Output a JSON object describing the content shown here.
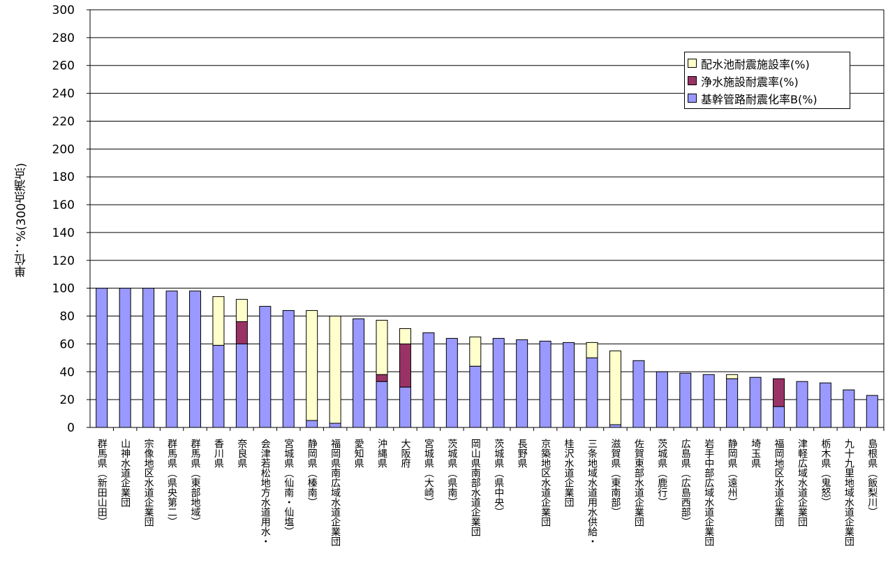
{
  "chart_data": {
    "type": "bar",
    "stacked": true,
    "title": "",
    "xlabel": "",
    "ylabel": "単位：%(300点満点)",
    "ylim": [
      0,
      300
    ],
    "yticks": [
      0,
      20,
      40,
      60,
      80,
      100,
      120,
      140,
      160,
      180,
      200,
      220,
      240,
      260,
      280,
      300
    ],
    "grid": true,
    "legend_position": "top-right",
    "categories": [
      "群馬県（新田山田）",
      "山神水道企業団",
      "宗像地区水道企業団",
      "群馬県（県央第二）",
      "群馬県（東部地域）",
      "香川県",
      "奈良県",
      "会津若松地方水道用水・",
      "宮城県（仙南・仙塩）",
      "静岡県（榛南）",
      "福岡県南広域水道企業団",
      "愛知県",
      "沖縄県",
      "大阪府",
      "宮城県（大崎）",
      "茨城県（県南）",
      "岡山県南部水道企業団",
      "茨城県（県中央）",
      "長野県",
      "京築地区水道企業団",
      "桂沢水道企業団",
      "三条地域水道用水供給・",
      "滋賀県（東南部）",
      "佐賀東部水道企業団",
      "茨城県（鹿行）",
      "広島県（広島西部）",
      "岩手中部広域水道企業団",
      "静岡県（遠州）",
      "埼玉県",
      "福岡地区水道企業団",
      "津軽広域水道企業団",
      "栃木県（鬼怒）",
      "九十九里地域水道企業団",
      "島根県（飯梨川）"
    ],
    "series": [
      {
        "name": "基幹管路耐震化率B(%)",
        "color": "#9999ff",
        "values": [
          100,
          100,
          100,
          98,
          98,
          59,
          60,
          87,
          84,
          5,
          3,
          78,
          33,
          29,
          68,
          64,
          44,
          64,
          63,
          62,
          61,
          50,
          2,
          48,
          40,
          39,
          38,
          35,
          36,
          15,
          33,
          32,
          27,
          23
        ]
      },
      {
        "name": "浄水施設耐震率(%)",
        "color": "#993366",
        "values": [
          0,
          0,
          0,
          0,
          0,
          0,
          16,
          0,
          0,
          0,
          0,
          0,
          5,
          31,
          0,
          0,
          0,
          0,
          0,
          0,
          0,
          0,
          0,
          0,
          0,
          0,
          0,
          0,
          0,
          20,
          0,
          0,
          0,
          0
        ]
      },
      {
        "name": "配水池耐震施設率(%)",
        "color": "#ffffcc",
        "values": [
          0,
          0,
          0,
          0,
          0,
          35,
          16,
          0,
          0,
          79,
          77,
          0,
          39,
          11,
          0,
          0,
          21,
          0,
          0,
          0,
          0,
          11,
          53,
          0,
          0,
          0,
          0,
          3,
          0,
          0,
          0,
          0,
          0,
          0
        ]
      }
    ],
    "legend_order": [
      "配水池耐震施設率(%)",
      "浄水施設耐震率(%)",
      "基幹管路耐震化率B(%)"
    ]
  }
}
